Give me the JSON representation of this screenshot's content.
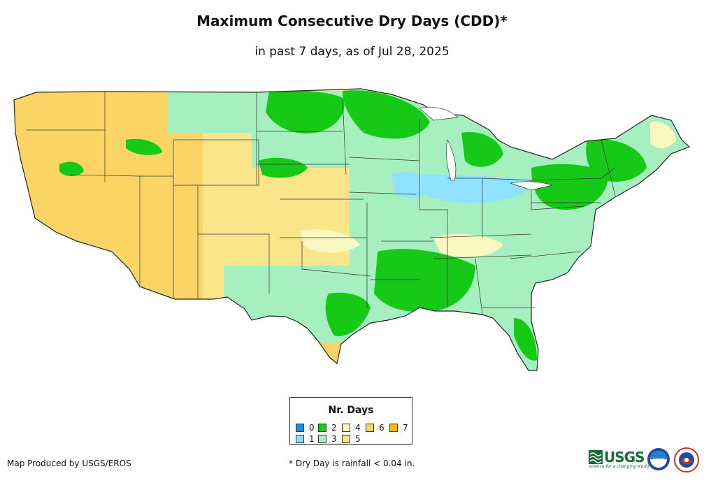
{
  "header": {
    "title": "Maximum Consecutive Dry Days (CDD)*",
    "subtitle": "in past 7 days, as of Jul 28, 2025"
  },
  "legend": {
    "title": "Nr. Days",
    "items": [
      {
        "label": "0",
        "color": "#1a8fe0"
      },
      {
        "label": "1",
        "color": "#8fe3ff"
      },
      {
        "label": "2",
        "color": "#17c917"
      },
      {
        "label": "3",
        "color": "#a6f0c0"
      },
      {
        "label": "4",
        "color": "#fbf7c0"
      },
      {
        "label": "5",
        "color": "#fbe58a"
      },
      {
        "label": "6",
        "color": "#fad566"
      },
      {
        "label": "7",
        "color": "#f5bc00"
      }
    ]
  },
  "footer": {
    "credit": "Map Produced by USGS/EROS",
    "note": "* Dry Day is rainfall < 0.04 in."
  },
  "logos": {
    "usgs": {
      "text": "USGS",
      "tagline": "science for a changing world"
    },
    "noaa": {
      "text": "noaa"
    },
    "nws": {
      "name": "nws-logo"
    }
  }
}
